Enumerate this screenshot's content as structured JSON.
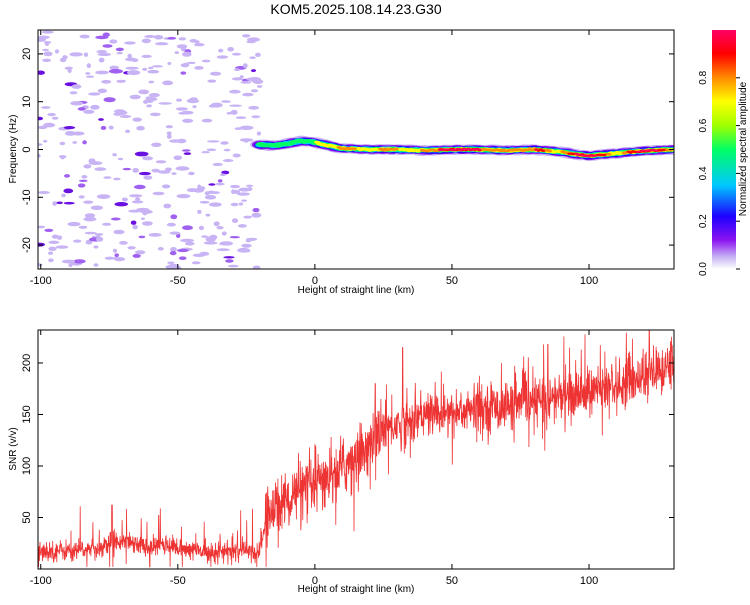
{
  "title": "KOM5.2025.108.14.23.G30",
  "chart_data": [
    {
      "type": "heatmap",
      "xlabel": "Height of straight line (km)",
      "ylabel": "Frequency (Hz)",
      "xlim": [
        -101,
        131
      ],
      "ylim": [
        -25,
        25
      ],
      "xticks": [
        -100,
        -50,
        0,
        50,
        100
      ],
      "yticks": [
        -20,
        -10,
        0,
        10,
        20
      ],
      "noise_region_x": [
        -101,
        -20
      ],
      "signal_trace": {
        "x": [
          -20,
          -15,
          -10,
          -5,
          0,
          5,
          10,
          20,
          30,
          40,
          50,
          60,
          70,
          80,
          90,
          95,
          100,
          110,
          120,
          131
        ],
        "freq": [
          1.0,
          0.8,
          1.2,
          1.8,
          1.5,
          0.8,
          0.2,
          0.0,
          0.0,
          -0.2,
          0.0,
          0.0,
          -0.2,
          0.0,
          -0.5,
          -1.0,
          -1.3,
          -0.8,
          -0.3,
          0.0
        ]
      },
      "colorbar": {
        "label": "Normalized spectral amplitude",
        "ticks": [
          0.0,
          0.2,
          0.4,
          0.6,
          0.8
        ],
        "range": [
          0,
          1
        ],
        "colormap": [
          "#ffffff",
          "#c8b4f5",
          "#8c14f0",
          "#1e00ff",
          "#00c8ff",
          "#00ff64",
          "#a0ff00",
          "#ffff00",
          "#ff8c00",
          "#ff0000",
          "#ff0064"
        ]
      }
    },
    {
      "type": "line",
      "xlabel": "Height of straight line (km)",
      "ylabel": "SNR (v/v)",
      "xlim": [
        -101,
        131
      ],
      "ylim": [
        0,
        232
      ],
      "xticks": [
        -100,
        -50,
        0,
        50,
        100
      ],
      "yticks": [
        50,
        100,
        150,
        200
      ],
      "color": "#ee3333",
      "trend": {
        "x": [
          -101,
          -80,
          -70,
          -60,
          -55,
          -50,
          -40,
          -30,
          -20,
          -18,
          -15,
          -10,
          -5,
          0,
          10,
          20,
          25,
          30,
          40,
          50,
          60,
          70,
          80,
          90,
          100,
          110,
          120,
          131
        ],
        "y": [
          17,
          19,
          30,
          20,
          25,
          20,
          17,
          17,
          17,
          45,
          60,
          68,
          75,
          80,
          98,
          122,
          138,
          140,
          150,
          152,
          156,
          158,
          162,
          168,
          172,
          178,
          188,
          195
        ]
      },
      "spikes": [
        {
          "x": -74,
          "y": 62
        },
        {
          "x": -57,
          "y": 52
        },
        {
          "x": 22,
          "y": 180
        },
        {
          "x": 32,
          "y": 215
        },
        {
          "x": 85,
          "y": 218
        },
        {
          "x": 122,
          "y": 232
        }
      ]
    }
  ]
}
